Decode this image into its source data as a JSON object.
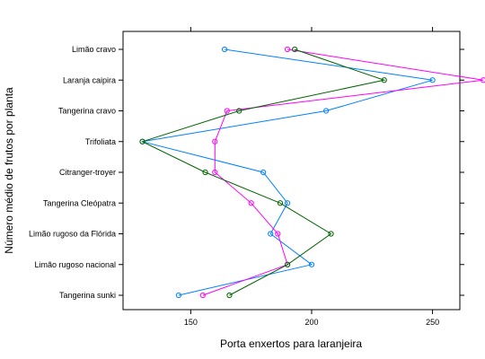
{
  "chart_data": {
    "type": "line",
    "orientation": "horizontal",
    "xlabel": "Porta enxertos para laranjeira",
    "ylabel": "Número médio de frutos por planta",
    "xlim": [
      122,
      512
    ],
    "x_ticks": [
      150,
      200,
      250
    ],
    "categories": [
      "Tangerina sunki",
      "Limão rugoso nacional",
      "Limão rugoso da Flórida",
      "Tangerina Cleópatra",
      "Citranger-troyer",
      "Trifoliata",
      "Tangerina cravo",
      "Laranja caipira",
      "Limão cravo"
    ],
    "grid": false,
    "legend": "none",
    "series": [
      {
        "color": "#0080ff",
        "values": [
          145,
          200,
          183,
          190,
          180,
          130,
          206,
          250,
          164
        ]
      },
      {
        "color": "#ff00ff",
        "values": [
          155,
          190,
          186,
          175,
          160,
          160,
          165,
          271,
          190
        ]
      },
      {
        "color": "#006400",
        "values": [
          166,
          190,
          208,
          187,
          156,
          130,
          170,
          230,
          193
        ]
      }
    ]
  }
}
